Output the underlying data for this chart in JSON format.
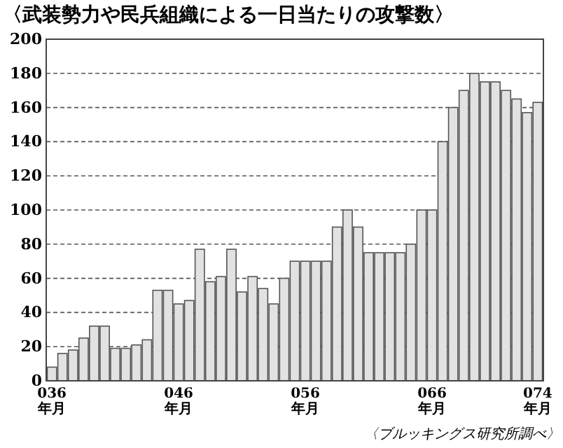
{
  "chart_data": {
    "type": "bar",
    "title": "〈武装勢力や民兵組織による一日当たりの攻撃数〉",
    "categories": [
      "036\n年月",
      null,
      null,
      null,
      null,
      null,
      null,
      null,
      null,
      null,
      null,
      null,
      "046\n年月",
      null,
      null,
      null,
      null,
      null,
      null,
      null,
      null,
      null,
      null,
      null,
      "056\n年月",
      null,
      null,
      null,
      null,
      null,
      null,
      null,
      null,
      null,
      null,
      null,
      "066\n年月",
      null,
      null,
      null,
      null,
      null,
      null,
      null,
      null,
      null,
      "074\n年月"
    ],
    "values": [
      8,
      16,
      18,
      25,
      32,
      32,
      19,
      19,
      21,
      24,
      53,
      53,
      45,
      47,
      77,
      58,
      61,
      77,
      52,
      61,
      54,
      45,
      60,
      70,
      70,
      70,
      70,
      90,
      100,
      90,
      75,
      75,
      75,
      75,
      80,
      100,
      100,
      140,
      160,
      170,
      180,
      175,
      175,
      170,
      165,
      157,
      163
    ],
    "color": "#e2e2e2",
    "ylim": [
      0,
      200
    ],
    "yticks": [
      0,
      20,
      40,
      60,
      80,
      100,
      120,
      140,
      160,
      180,
      200
    ],
    "grid": "y",
    "annotations": [
      "〈ブルッキングス研究所調べ〉"
    ]
  }
}
